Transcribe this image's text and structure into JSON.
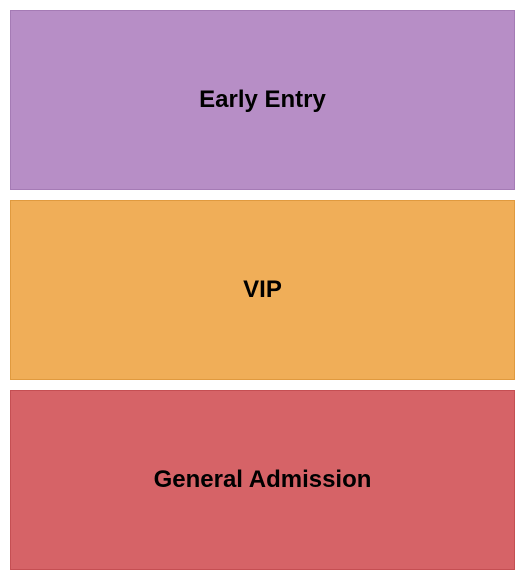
{
  "seating_chart": {
    "type": "infographic",
    "background_color": "#ffffff",
    "gap": 10,
    "padding": 10,
    "label_fontsize": 24,
    "label_fontweight": "bold",
    "label_color": "#000000",
    "sections": [
      {
        "label": "Early Entry",
        "fill_color": "#b78ec6",
        "border_color": "#a57bb5"
      },
      {
        "label": "VIP",
        "fill_color": "#f0ae58",
        "border_color": "#e09a3f"
      },
      {
        "label": "General Admission",
        "fill_color": "#d66367",
        "border_color": "#c54f53"
      }
    ]
  }
}
